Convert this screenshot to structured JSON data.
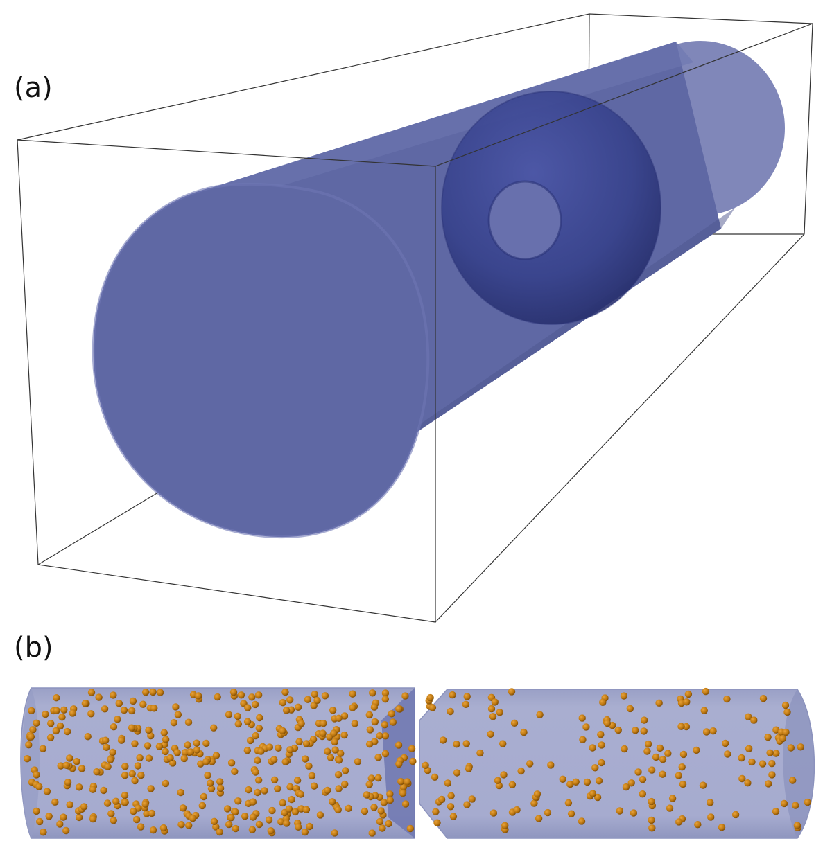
{
  "figure": {
    "panel_a": {
      "label": "(a)"
    },
    "panel_b": {
      "label": "(b)"
    }
  },
  "colors": {
    "tube_fill": "#5a64a0",
    "tube_dark": "#3a4288",
    "tube_light_fill": "#a4a9cc",
    "tube_light_edge": "#8c93bd",
    "particle": "#c07a12",
    "particle_edge": "#7a4a06",
    "box_line": "#333333"
  }
}
